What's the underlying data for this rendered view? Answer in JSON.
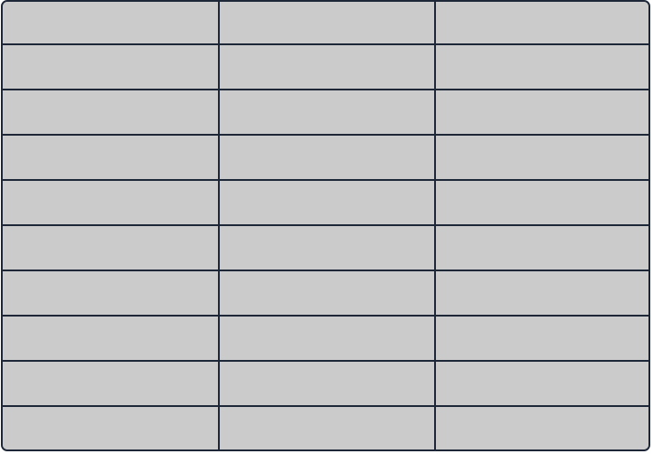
{
  "table": {
    "columns": 3,
    "rows": [
      [
        "",
        "",
        ""
      ],
      [
        "",
        "",
        ""
      ],
      [
        "",
        "",
        ""
      ],
      [
        "",
        "",
        ""
      ],
      [
        "",
        "",
        ""
      ],
      [
        "",
        "",
        ""
      ],
      [
        "",
        "",
        ""
      ],
      [
        "",
        "",
        ""
      ],
      [
        "",
        "",
        ""
      ],
      [
        "",
        "",
        ""
      ]
    ]
  },
  "colors": {
    "cell_fill": "#cbcbcb",
    "grid_line": "#1d2738",
    "background": "#ffffff"
  }
}
